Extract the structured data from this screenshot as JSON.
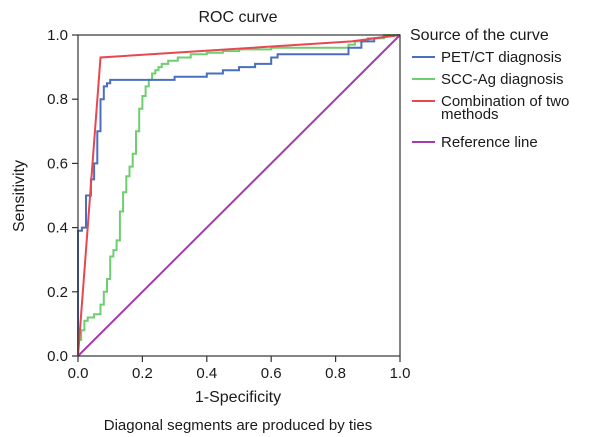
{
  "chart_data": {
    "type": "line",
    "title": "ROC curve",
    "xlabel": "1-Specificity",
    "ylabel": "Sensitivity",
    "xlim": [
      0.0,
      1.0
    ],
    "ylim": [
      0.0,
      1.0
    ],
    "xticks": [
      "0.0",
      "0.2",
      "0.4",
      "0.6",
      "0.8",
      "1.0"
    ],
    "yticks": [
      "0.0",
      "0.2",
      "0.4",
      "0.6",
      "0.8",
      "1.0"
    ],
    "grid": false,
    "legend": {
      "title": "Source of the curve",
      "placement": "right"
    },
    "footnote": "Diagonal segments are produced by ties",
    "series": [
      {
        "name": "PET/CT diagnosis",
        "label_lines": [
          "PET/CT diagnosis"
        ],
        "color": "#4a6fc0",
        "x": [
          0,
          0,
          0.012,
          0.012,
          0.025,
          0.025,
          0.04,
          0.04,
          0.05,
          0.05,
          0.06,
          0.06,
          0.07,
          0.07,
          0.08,
          0.08,
          0.09,
          0.09,
          0.1,
          0.1,
          0.3,
          0.3,
          0.4,
          0.4,
          0.45,
          0.45,
          0.5,
          0.5,
          0.55,
          0.55,
          0.6,
          0.6,
          0.62,
          0.62,
          0.84,
          0.84,
          0.88,
          0.88,
          0.92,
          0.92,
          1
        ],
        "y": [
          0,
          0.39,
          0.39,
          0.4,
          0.4,
          0.5,
          0.5,
          0.55,
          0.55,
          0.6,
          0.6,
          0.7,
          0.7,
          0.8,
          0.8,
          0.84,
          0.84,
          0.85,
          0.85,
          0.86,
          0.86,
          0.87,
          0.87,
          0.88,
          0.88,
          0.89,
          0.89,
          0.9,
          0.9,
          0.91,
          0.91,
          0.93,
          0.93,
          0.94,
          0.94,
          0.96,
          0.96,
          0.98,
          0.98,
          0.99,
          1.0
        ]
      },
      {
        "name": "SCC-Ag diagnosis",
        "label_lines": [
          "SCC-Ag diagnosis"
        ],
        "color": "#6fce6f",
        "x": [
          0,
          0,
          0.01,
          0.01,
          0.02,
          0.02,
          0.03,
          0.03,
          0.05,
          0.05,
          0.07,
          0.07,
          0.08,
          0.08,
          0.09,
          0.09,
          0.1,
          0.1,
          0.11,
          0.11,
          0.12,
          0.12,
          0.13,
          0.13,
          0.14,
          0.14,
          0.15,
          0.15,
          0.16,
          0.16,
          0.17,
          0.17,
          0.18,
          0.18,
          0.19,
          0.19,
          0.2,
          0.2,
          0.21,
          0.21,
          0.22,
          0.22,
          0.23,
          0.23,
          0.24,
          0.24,
          0.25,
          0.25,
          0.26,
          0.26,
          0.28,
          0.28,
          0.31,
          0.31,
          0.35,
          0.35,
          0.4,
          0.4,
          0.45,
          0.45,
          0.5,
          0.5,
          0.6,
          0.6,
          0.84,
          0.84,
          0.86,
          0.86,
          0.9,
          0.9,
          0.95,
          0.95,
          1
        ],
        "y": [
          0,
          0.05,
          0.05,
          0.08,
          0.08,
          0.11,
          0.11,
          0.12,
          0.12,
          0.13,
          0.13,
          0.16,
          0.16,
          0.2,
          0.2,
          0.24,
          0.24,
          0.31,
          0.31,
          0.33,
          0.33,
          0.36,
          0.36,
          0.45,
          0.45,
          0.51,
          0.51,
          0.56,
          0.56,
          0.59,
          0.59,
          0.63,
          0.63,
          0.7,
          0.7,
          0.77,
          0.77,
          0.81,
          0.81,
          0.84,
          0.84,
          0.86,
          0.86,
          0.88,
          0.88,
          0.89,
          0.89,
          0.9,
          0.9,
          0.91,
          0.91,
          0.92,
          0.92,
          0.93,
          0.93,
          0.94,
          0.94,
          0.945,
          0.945,
          0.95,
          0.95,
          0.955,
          0.955,
          0.96,
          0.96,
          0.97,
          0.97,
          0.98,
          0.98,
          0.99,
          0.99,
          1.0,
          1.0
        ]
      },
      {
        "name": "Combination of two methods",
        "label_lines": [
          "Combination of two",
          "methods"
        ],
        "color": "#e8474f",
        "x": [
          0,
          0.07,
          0.85,
          1
        ],
        "y": [
          0,
          0.93,
          0.98,
          1.0
        ]
      },
      {
        "name": "Reference line",
        "label_lines": [
          "Reference line"
        ],
        "color": "#a23dab",
        "x": [
          0,
          1
        ],
        "y": [
          0,
          1
        ]
      }
    ]
  }
}
